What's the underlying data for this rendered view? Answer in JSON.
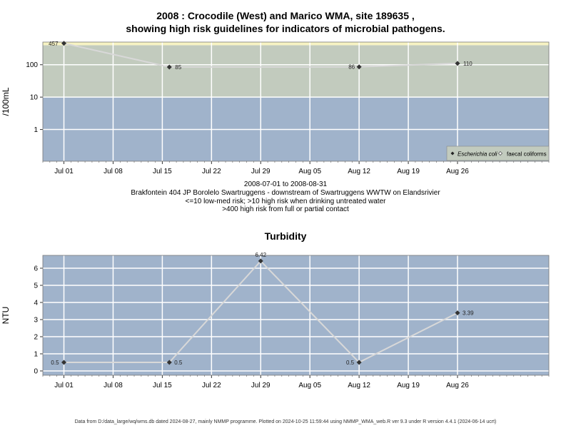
{
  "page": {
    "title_line1": "2008 : Crocodile (West) and Marico WMA, site 189635 ,",
    "title_line2": "showing high risk guidelines for indicators of microbial pathogens.",
    "caption_lines": [
      "2008-07-01 to 2008-08-31",
      "Brakfontein 404 JP Borolelo Swartruggens - downstream of Swartruggens WWTW on Elandsrivier",
      "<=10 low-med risk; >10 high risk when drinking untreated water",
      ">400 high risk from full or partial contact"
    ],
    "turbidity_title": "Turbidity",
    "footer": "Data from D:/data_large/wq/wms.db dated 2024-08-27, mainly NMMP programme. Plotted on 2024-10-25 11:59:44 using NMMP_WMA_web.R ver 9.3 under R version 4.4.1 (2024-06-14 ucrt)"
  },
  "colors": {
    "low_risk_band": "#a0b3cb",
    "high_risk_band": "#c2cbbe",
    "contact_risk_band": "#f7f3c3",
    "panel_bg": "#a0b3cb",
    "grid": "#ffffff",
    "line": "#d8d8d8",
    "marker": "#333333"
  },
  "chart_data": [
    {
      "type": "line",
      "ylabel": "/100mL",
      "y_scale": "log",
      "y_ticks": [
        "1",
        "10",
        "100"
      ],
      "y_tick_values": [
        1,
        10,
        100
      ],
      "x_range": [
        "2008-06-28",
        "2008-09-08"
      ],
      "x_ticks": [
        "Jul 01",
        "Jul 08",
        "Jul 15",
        "Jul 22",
        "Jul 29",
        "Aug 05",
        "Aug 12",
        "Aug 19",
        "Aug 26"
      ],
      "x_tick_dates": [
        "2008-07-01",
        "2008-07-08",
        "2008-07-15",
        "2008-07-22",
        "2008-07-29",
        "2008-08-05",
        "2008-08-12",
        "2008-08-19",
        "2008-08-26"
      ],
      "bands": [
        {
          "lower": 0.1,
          "upper": 10,
          "color": "#a0b3cb"
        },
        {
          "lower": 10,
          "upper": 400,
          "color": "#c2cbbe"
        },
        {
          "lower": 400,
          "upper": 500,
          "color": "#f7f3c3"
        }
      ],
      "series": [
        {
          "name": "Escherichia coli",
          "marker": "filled-diamond",
          "points": [
            {
              "x": "2008-07-01",
              "y": 457,
              "label": "457"
            },
            {
              "x": "2008-07-16",
              "y": 85,
              "label": "85"
            },
            {
              "x": "2008-08-12",
              "y": 86,
              "label": "86"
            },
            {
              "x": "2008-08-26",
              "y": 110,
              "label": "110"
            }
          ]
        },
        {
          "name": "faecal coliforms",
          "marker": "open-diamond",
          "points": []
        }
      ],
      "legend_position": "bottom-right"
    },
    {
      "type": "line",
      "title": "Turbidity",
      "ylabel": "NTU",
      "ylim": [
        -0.25,
        6.75
      ],
      "y_ticks": [
        0,
        1,
        2,
        3,
        4,
        5,
        6
      ],
      "x_range": [
        "2008-06-28",
        "2008-09-08"
      ],
      "x_ticks": [
        "Jul 01",
        "Jul 08",
        "Jul 15",
        "Jul 22",
        "Jul 29",
        "Aug 05",
        "Aug 12",
        "Aug 19",
        "Aug 26"
      ],
      "x_tick_dates": [
        "2008-07-01",
        "2008-07-08",
        "2008-07-15",
        "2008-07-22",
        "2008-07-29",
        "2008-08-05",
        "2008-08-12",
        "2008-08-19",
        "2008-08-26"
      ],
      "series": [
        {
          "points": [
            {
              "x": "2008-07-01",
              "y": 0.5,
              "label": "0.5"
            },
            {
              "x": "2008-07-16",
              "y": 0.5,
              "label": "0.5"
            },
            {
              "x": "2008-07-29",
              "y": 6.42,
              "label": "6.42"
            },
            {
              "x": "2008-08-12",
              "y": 0.5,
              "label": "0.5"
            },
            {
              "x": "2008-08-26",
              "y": 3.39,
              "label": "3.39"
            }
          ]
        }
      ]
    }
  ]
}
